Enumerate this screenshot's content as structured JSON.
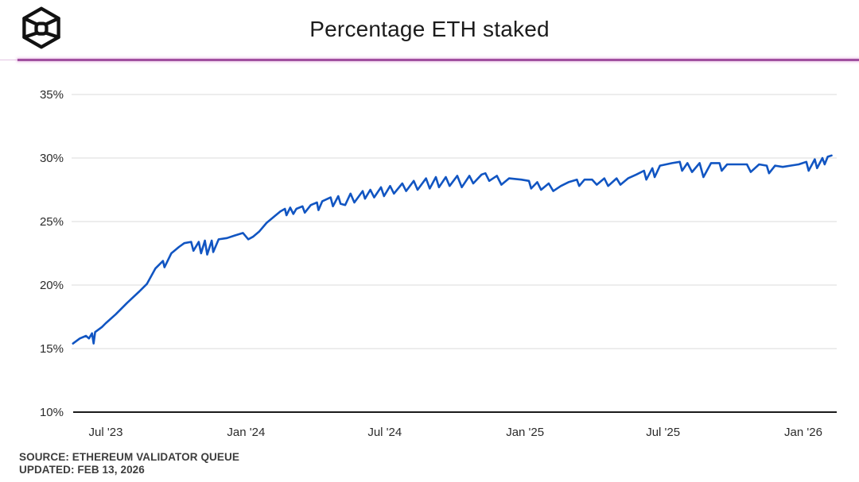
{
  "header": {
    "title": "Percentage ETH staked",
    "logo": "the-block-cube-logo"
  },
  "footer": {
    "source": "SOURCE: ETHEREUM VALIDATOR QUEUE",
    "updated": "UPDATED: FEB 13, 2026"
  },
  "colors": {
    "line": "#1155c2",
    "divider": "#a0509f",
    "grid": "#e7e7e7",
    "axis": "#1a1a1a",
    "tick_text": "#2b2b2b",
    "footer_text": "#3d3d3d"
  },
  "chart_data": {
    "type": "line",
    "title": "Percentage ETH staked",
    "xlabel": "",
    "ylabel": "",
    "ylim": [
      10,
      35
    ],
    "grid": "horizontal-only",
    "legend": "none",
    "y_ticks": [
      35,
      30,
      25,
      20,
      15,
      10
    ],
    "y_tick_suffix": "%",
    "x_ticks": [
      {
        "label": "Jul '23",
        "date": "2023-07-01"
      },
      {
        "label": "Jan '24",
        "date": "2024-01-01"
      },
      {
        "label": "Jul '24",
        "date": "2024-07-01"
      },
      {
        "label": "Jan '25",
        "date": "2025-01-01"
      },
      {
        "label": "Jul '25",
        "date": "2025-07-01"
      },
      {
        "label": "Jan '26",
        "date": "2026-01-01"
      }
    ],
    "x_range": [
      "2023-05-19",
      "2026-02-07"
    ],
    "series": [
      {
        "name": "Percentage ETH staked",
        "color": "#1155c2",
        "points": [
          [
            "2023-05-19",
            15.4
          ],
          [
            "2023-05-28",
            15.8
          ],
          [
            "2023-06-05",
            16.0
          ],
          [
            "2023-06-09",
            15.8
          ],
          [
            "2023-06-13",
            16.2
          ],
          [
            "2023-06-15",
            15.4
          ],
          [
            "2023-06-17",
            16.3
          ],
          [
            "2023-06-26",
            16.7
          ],
          [
            "2023-07-01",
            17.0
          ],
          [
            "2023-07-14",
            17.7
          ],
          [
            "2023-07-29",
            18.6
          ],
          [
            "2023-08-14",
            19.5
          ],
          [
            "2023-08-24",
            20.1
          ],
          [
            "2023-09-04",
            21.3
          ],
          [
            "2023-09-14",
            21.9
          ],
          [
            "2023-09-16",
            21.4
          ],
          [
            "2023-09-25",
            22.5
          ],
          [
            "2023-10-05",
            23.0
          ],
          [
            "2023-10-12",
            23.3
          ],
          [
            "2023-10-21",
            23.4
          ],
          [
            "2023-10-24",
            22.7
          ],
          [
            "2023-10-31",
            23.4
          ],
          [
            "2023-11-03",
            22.5
          ],
          [
            "2023-11-08",
            23.5
          ],
          [
            "2023-11-11",
            22.4
          ],
          [
            "2023-11-17",
            23.5
          ],
          [
            "2023-11-19",
            22.6
          ],
          [
            "2023-11-26",
            23.6
          ],
          [
            "2023-12-07",
            23.7
          ],
          [
            "2023-12-17",
            23.9
          ],
          [
            "2023-12-28",
            24.1
          ],
          [
            "2024-01-04",
            23.6
          ],
          [
            "2024-01-10",
            23.8
          ],
          [
            "2024-01-18",
            24.2
          ],
          [
            "2024-01-28",
            24.9
          ],
          [
            "2024-02-07",
            25.4
          ],
          [
            "2024-02-15",
            25.8
          ],
          [
            "2024-02-21",
            26.0
          ],
          [
            "2024-02-23",
            25.5
          ],
          [
            "2024-02-28",
            26.1
          ],
          [
            "2024-03-03",
            25.6
          ],
          [
            "2024-03-07",
            26.0
          ],
          [
            "2024-03-15",
            26.2
          ],
          [
            "2024-03-18",
            25.7
          ],
          [
            "2024-03-26",
            26.3
          ],
          [
            "2024-04-03",
            26.5
          ],
          [
            "2024-04-05",
            25.9
          ],
          [
            "2024-04-10",
            26.6
          ],
          [
            "2024-04-21",
            26.9
          ],
          [
            "2024-04-24",
            26.2
          ],
          [
            "2024-05-01",
            27.0
          ],
          [
            "2024-05-04",
            26.4
          ],
          [
            "2024-05-10",
            26.3
          ],
          [
            "2024-05-17",
            27.2
          ],
          [
            "2024-05-22",
            26.5
          ],
          [
            "2024-06-02",
            27.4
          ],
          [
            "2024-06-05",
            26.8
          ],
          [
            "2024-06-12",
            27.5
          ],
          [
            "2024-06-17",
            26.9
          ],
          [
            "2024-06-26",
            27.7
          ],
          [
            "2024-06-30",
            27.0
          ],
          [
            "2024-07-08",
            27.8
          ],
          [
            "2024-07-13",
            27.2
          ],
          [
            "2024-07-24",
            28.0
          ],
          [
            "2024-07-29",
            27.4
          ],
          [
            "2024-08-08",
            28.2
          ],
          [
            "2024-08-13",
            27.5
          ],
          [
            "2024-08-24",
            28.4
          ],
          [
            "2024-08-29",
            27.6
          ],
          [
            "2024-09-06",
            28.5
          ],
          [
            "2024-09-10",
            27.7
          ],
          [
            "2024-09-19",
            28.5
          ],
          [
            "2024-09-24",
            27.8
          ],
          [
            "2024-10-04",
            28.6
          ],
          [
            "2024-10-10",
            27.7
          ],
          [
            "2024-10-20",
            28.6
          ],
          [
            "2024-10-25",
            28.0
          ],
          [
            "2024-11-05",
            28.7
          ],
          [
            "2024-11-10",
            28.8
          ],
          [
            "2024-11-15",
            28.2
          ],
          [
            "2024-11-25",
            28.6
          ],
          [
            "2024-12-01",
            27.9
          ],
          [
            "2024-12-11",
            28.4
          ],
          [
            "2024-12-27",
            28.3
          ],
          [
            "2025-01-06",
            28.2
          ],
          [
            "2025-01-09",
            27.6
          ],
          [
            "2025-01-17",
            28.1
          ],
          [
            "2025-01-22",
            27.5
          ],
          [
            "2025-02-01",
            28.0
          ],
          [
            "2025-02-07",
            27.4
          ],
          [
            "2025-02-17",
            27.8
          ],
          [
            "2025-02-27",
            28.1
          ],
          [
            "2025-03-10",
            28.3
          ],
          [
            "2025-03-13",
            27.8
          ],
          [
            "2025-03-20",
            28.3
          ],
          [
            "2025-03-30",
            28.3
          ],
          [
            "2025-04-05",
            27.9
          ],
          [
            "2025-04-15",
            28.4
          ],
          [
            "2025-04-20",
            27.8
          ],
          [
            "2025-05-01",
            28.4
          ],
          [
            "2025-05-06",
            27.9
          ],
          [
            "2025-05-16",
            28.4
          ],
          [
            "2025-05-27",
            28.7
          ],
          [
            "2025-06-06",
            29.0
          ],
          [
            "2025-06-09",
            28.3
          ],
          [
            "2025-06-17",
            29.2
          ],
          [
            "2025-06-20",
            28.5
          ],
          [
            "2025-06-27",
            29.4
          ],
          [
            "2025-07-05",
            29.5
          ],
          [
            "2025-07-13",
            29.6
          ],
          [
            "2025-07-23",
            29.7
          ],
          [
            "2025-07-26",
            29.0
          ],
          [
            "2025-08-02",
            29.6
          ],
          [
            "2025-08-08",
            28.9
          ],
          [
            "2025-08-18",
            29.6
          ],
          [
            "2025-08-23",
            28.5
          ],
          [
            "2025-09-02",
            29.6
          ],
          [
            "2025-09-13",
            29.6
          ],
          [
            "2025-09-16",
            29.0
          ],
          [
            "2025-09-23",
            29.5
          ],
          [
            "2025-10-04",
            29.5
          ],
          [
            "2025-10-19",
            29.5
          ],
          [
            "2025-10-24",
            28.9
          ],
          [
            "2025-11-04",
            29.5
          ],
          [
            "2025-11-14",
            29.4
          ],
          [
            "2025-11-17",
            28.8
          ],
          [
            "2025-11-25",
            29.4
          ],
          [
            "2025-12-05",
            29.3
          ],
          [
            "2025-12-15",
            29.4
          ],
          [
            "2025-12-26",
            29.5
          ],
          [
            "2026-01-05",
            29.7
          ],
          [
            "2026-01-08",
            29.0
          ],
          [
            "2026-01-16",
            29.9
          ],
          [
            "2026-01-19",
            29.2
          ],
          [
            "2026-01-26",
            30.0
          ],
          [
            "2026-01-29",
            29.5
          ],
          [
            "2026-02-02",
            30.1
          ],
          [
            "2026-02-07",
            30.2
          ]
        ]
      }
    ]
  }
}
